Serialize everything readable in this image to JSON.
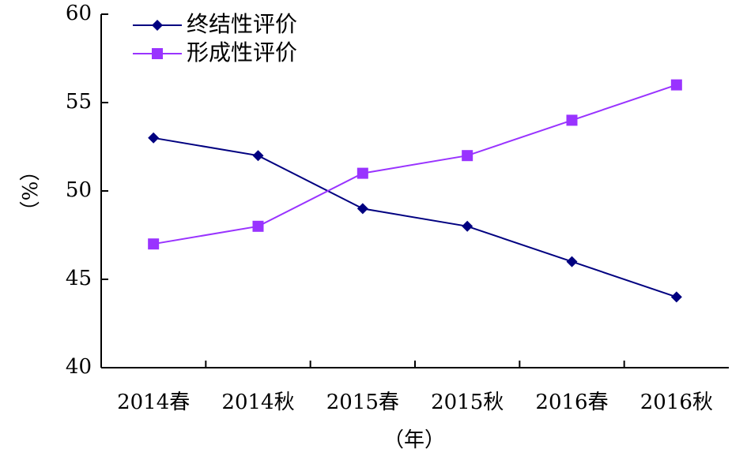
{
  "chart_data": {
    "type": "line",
    "categories": [
      "2014春",
      "2014秋",
      "2015春",
      "2015秋",
      "2016春",
      "2016秋"
    ],
    "series": [
      {
        "name": "终结性评价",
        "values": [
          53,
          52,
          49,
          48,
          46,
          44
        ],
        "color": "#000080",
        "marker": "diamond"
      },
      {
        "name": "形成性评价",
        "values": [
          47,
          48,
          51,
          52,
          54,
          56
        ],
        "color": "#9933FF",
        "marker": "square"
      }
    ],
    "xlabel": "（年）",
    "ylabel": "（%）",
    "ylim": [
      40,
      60
    ],
    "yticks": [
      40,
      45,
      50,
      55,
      60
    ],
    "grid": false,
    "legend_position": "top-left"
  }
}
